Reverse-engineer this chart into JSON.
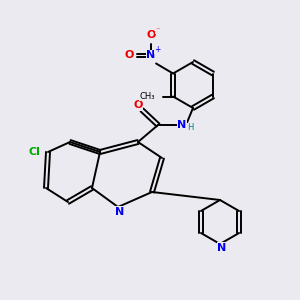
{
  "bg_color": "#eaeaf0",
  "bond_color": "#000000",
  "bond_width": 1.4,
  "atom_colors": {
    "N": "#0000ee",
    "O": "#ee0000",
    "Cl": "#00aa00",
    "C": "#000000",
    "H": "#008080"
  },
  "font_size_atom": 8,
  "font_size_small": 6
}
